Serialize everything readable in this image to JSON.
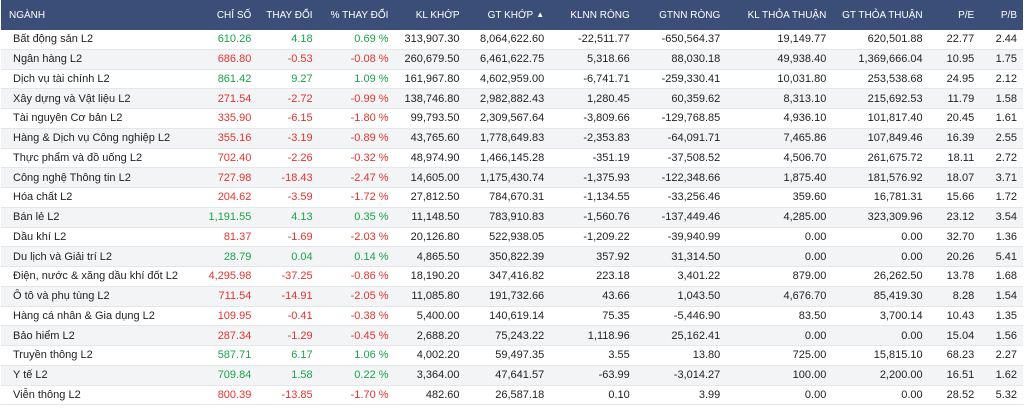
{
  "colors": {
    "header_bg": "#3b4e77",
    "up": "#1aa34a",
    "down": "#e3342f"
  },
  "headers": [
    "NGÀNH",
    "CHỈ SỐ",
    "THAY ĐỔI",
    "% THAY ĐỔI",
    "KL KHỚP",
    "GT KHỚP",
    "KLNN RÒNG",
    "GTNN RÒNG",
    "KL THỎA THUẬN",
    "GT THỎA THUẬN",
    "P/E",
    "P/B"
  ],
  "sort_icon": "sort-up-down-icon",
  "rows": [
    {
      "name": "Bất động sản L2",
      "index": "610.26",
      "change": "4.18",
      "pct": "0.69 %",
      "dir": "up",
      "kl": "313,907.30",
      "gt": "8,064,622.60",
      "klnn": "-22,511.77",
      "gtnn": "-650,564.37",
      "kltt": "19,149.77",
      "gttt": "620,501.88",
      "pe": "22.77",
      "pb": "2.44"
    },
    {
      "name": "Ngân hàng L2",
      "index": "686.80",
      "change": "-0.53",
      "pct": "-0.08 %",
      "dir": "down",
      "kl": "260,679.50",
      "gt": "6,461,622.75",
      "klnn": "5,318.66",
      "gtnn": "88,030.18",
      "kltt": "49,938.40",
      "gttt": "1,369,666.04",
      "pe": "10.95",
      "pb": "1.75"
    },
    {
      "name": "Dịch vụ tài chính L2",
      "index": "861.42",
      "change": "9.27",
      "pct": "1.09 %",
      "dir": "up",
      "kl": "161,967.80",
      "gt": "4,602,959.00",
      "klnn": "-6,741.71",
      "gtnn": "-259,330.41",
      "kltt": "10,031.80",
      "gttt": "253,538.68",
      "pe": "24.95",
      "pb": "2.12"
    },
    {
      "name": "Xây dựng và Vật liệu L2",
      "index": "271.54",
      "change": "-2.72",
      "pct": "-0.99 %",
      "dir": "down",
      "kl": "138,746.80",
      "gt": "2,982,882.43",
      "klnn": "1,280.45",
      "gtnn": "60,359.62",
      "kltt": "8,313.10",
      "gttt": "215,692.53",
      "pe": "11.79",
      "pb": "1.58"
    },
    {
      "name": "Tài nguyên Cơ bản L2",
      "index": "335.90",
      "change": "-6.15",
      "pct": "-1.80 %",
      "dir": "down",
      "kl": "99,793.50",
      "gt": "2,309,567.64",
      "klnn": "-3,809.66",
      "gtnn": "-129,768.85",
      "kltt": "4,936.10",
      "gttt": "101,817.40",
      "pe": "20.45",
      "pb": "1.61"
    },
    {
      "name": "Hàng & Dịch vụ Công nghiệp L2",
      "index": "355.16",
      "change": "-3.19",
      "pct": "-0.89 %",
      "dir": "down",
      "kl": "43,765.60",
      "gt": "1,778,649.83",
      "klnn": "-2,353.83",
      "gtnn": "-64,091.71",
      "kltt": "7,465.86",
      "gttt": "107,849.46",
      "pe": "16.39",
      "pb": "2.55"
    },
    {
      "name": "Thực phẩm và đồ uống L2",
      "index": "702.40",
      "change": "-2.26",
      "pct": "-0.32 %",
      "dir": "down",
      "kl": "48,974.90",
      "gt": "1,466,145.28",
      "klnn": "-351.19",
      "gtnn": "-37,508.52",
      "kltt": "4,506.70",
      "gttt": "261,675.72",
      "pe": "18.11",
      "pb": "2.72"
    },
    {
      "name": "Công nghệ Thông tin L2",
      "index": "727.98",
      "change": "-18.43",
      "pct": "-2.47 %",
      "dir": "down",
      "kl": "14,605.00",
      "gt": "1,175,430.74",
      "klnn": "-1,375.93",
      "gtnn": "-122,348.66",
      "kltt": "1,875.40",
      "gttt": "181,576.92",
      "pe": "18.07",
      "pb": "3.71"
    },
    {
      "name": "Hóa chất L2",
      "index": "204.62",
      "change": "-3.59",
      "pct": "-1.72 %",
      "dir": "down",
      "kl": "27,812.50",
      "gt": "784,670.31",
      "klnn": "-1,134.55",
      "gtnn": "-33,256.46",
      "kltt": "359.60",
      "gttt": "16,781.31",
      "pe": "15.66",
      "pb": "1.72"
    },
    {
      "name": "Bán lẻ L2",
      "index": "1,191.55",
      "change": "4.13",
      "pct": "0.35 %",
      "dir": "up",
      "kl": "11,148.50",
      "gt": "783,910.83",
      "klnn": "-1,560.76",
      "gtnn": "-137,449.46",
      "kltt": "4,285.00",
      "gttt": "323,309.96",
      "pe": "23.12",
      "pb": "3.54"
    },
    {
      "name": "Dầu khí L2",
      "index": "81.37",
      "change": "-1.69",
      "pct": "-2.03 %",
      "dir": "down",
      "kl": "20,126.80",
      "gt": "522,938.05",
      "klnn": "-1,209.22",
      "gtnn": "-39,940.99",
      "kltt": "0.00",
      "gttt": "0.00",
      "pe": "32.70",
      "pb": "1.36"
    },
    {
      "name": "Du lịch và Giải trí L2",
      "index": "28.79",
      "change": "0.04",
      "pct": "0.14 %",
      "dir": "up",
      "kl": "4,865.50",
      "gt": "350,822.39",
      "klnn": "357.92",
      "gtnn": "31,314.50",
      "kltt": "0.00",
      "gttt": "0.00",
      "pe": "20.26",
      "pb": "5.41"
    },
    {
      "name": "Điện, nước & xăng dầu khí đốt L2",
      "index": "4,295.98",
      "change": "-37.25",
      "pct": "-0.86 %",
      "dir": "down",
      "kl": "18,190.20",
      "gt": "347,416.82",
      "klnn": "223.18",
      "gtnn": "3,401.22",
      "kltt": "879.00",
      "gttt": "26,262.50",
      "pe": "13.78",
      "pb": "1.68"
    },
    {
      "name": "Ô tô và phụ tùng L2",
      "index": "711.54",
      "change": "-14.91",
      "pct": "-2.05 %",
      "dir": "down",
      "kl": "11,085.80",
      "gt": "191,732.66",
      "klnn": "43.66",
      "gtnn": "1,043.50",
      "kltt": "4,676.70",
      "gttt": "85,419.30",
      "pe": "8.28",
      "pb": "1.54"
    },
    {
      "name": "Hàng cá nhân & Gia dụng L2",
      "index": "109.95",
      "change": "-0.41",
      "pct": "-0.38 %",
      "dir": "down",
      "kl": "5,400.00",
      "gt": "140,619.14",
      "klnn": "75.35",
      "gtnn": "-5,446.90",
      "kltt": "83.50",
      "gttt": "3,700.14",
      "pe": "10.43",
      "pb": "1.35"
    },
    {
      "name": "Bảo hiểm L2",
      "index": "287.34",
      "change": "-1.29",
      "pct": "-0.45 %",
      "dir": "down",
      "kl": "2,688.20",
      "gt": "75,243.22",
      "klnn": "1,118.96",
      "gtnn": "25,162.41",
      "kltt": "0.00",
      "gttt": "0.00",
      "pe": "15.04",
      "pb": "1.56"
    },
    {
      "name": "Truyền thông L2",
      "index": "587.71",
      "change": "6.17",
      "pct": "1.06 %",
      "dir": "up",
      "kl": "4,002.20",
      "gt": "59,497.35",
      "klnn": "3.55",
      "gtnn": "13.80",
      "kltt": "725.00",
      "gttt": "15,815.10",
      "pe": "68.23",
      "pb": "2.27"
    },
    {
      "name": "Y tế L2",
      "index": "709.84",
      "change": "1.58",
      "pct": "0.22 %",
      "dir": "up",
      "kl": "3,364.00",
      "gt": "47,641.57",
      "klnn": "-63.99",
      "gtnn": "-3,014.27",
      "kltt": "100.00",
      "gttt": "2,200.00",
      "pe": "16.51",
      "pb": "1.62"
    },
    {
      "name": "Viễn thông L2",
      "index": "800.39",
      "change": "-13.85",
      "pct": "-1.70 %",
      "dir": "down",
      "kl": "482.60",
      "gt": "26,587.18",
      "klnn": "0.10",
      "gtnn": "3.99",
      "kltt": "0.00",
      "gttt": "0.00",
      "pe": "28.52",
      "pb": "5.32"
    }
  ]
}
